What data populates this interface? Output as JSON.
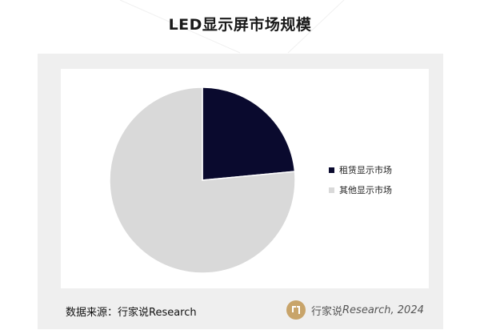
{
  "header": {
    "title": "LED显示屏市场规模"
  },
  "chart_data": {
    "type": "pie",
    "title": "LED显示屏市场规模",
    "slices": [
      {
        "label": "租赁显示市场",
        "value": 23.5,
        "color": "#0a0a2e"
      },
      {
        "label": "其他显示市场",
        "value": 76.5,
        "color": "#d9d9d9"
      }
    ],
    "start_angle_deg": 0,
    "direction": "clockwise",
    "legend": "right"
  },
  "footer": {
    "source": "数据来源：行家说Research",
    "brand_name": "行家说",
    "brand_italic": "Research, 2024",
    "logo_icon": "hangjiashuo-logo-icon",
    "logo_color": "#c8a46a"
  }
}
